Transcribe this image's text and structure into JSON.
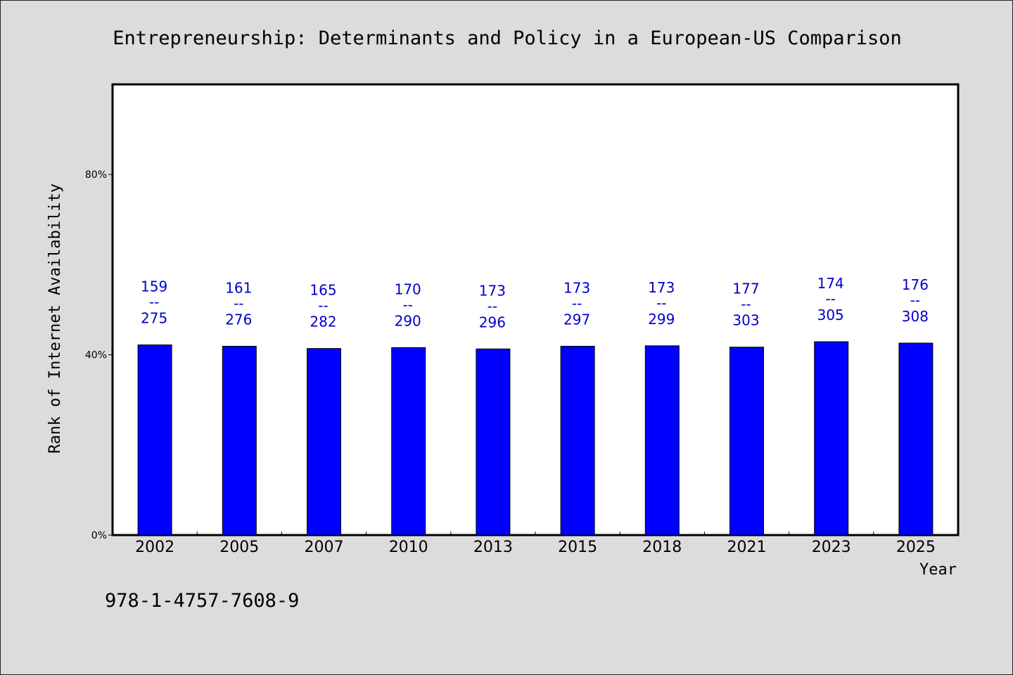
{
  "chart_data": {
    "type": "bar",
    "title": "Entrepreneurship: Determinants and Policy in a European-US Comparison",
    "xlabel": "Year",
    "ylabel": "Rank of Internet Availability",
    "categories": [
      "2002",
      "2005",
      "2007",
      "2010",
      "2013",
      "2015",
      "2018",
      "2021",
      "2023",
      "2025"
    ],
    "values": [
      0.422,
      0.419,
      0.414,
      0.416,
      0.413,
      0.419,
      0.42,
      0.417,
      0.429,
      0.426
    ],
    "labels_top": [
      "159",
      "161",
      "165",
      "170",
      "173",
      "173",
      "173",
      "177",
      "174",
      "176"
    ],
    "labels_bottom": [
      "275",
      "276",
      "282",
      "290",
      "296",
      "297",
      "299",
      "303",
      "305",
      "308"
    ],
    "label_separator": "--",
    "ylim": [
      0,
      1.0
    ],
    "yticks": [
      0,
      0.4,
      0.8
    ],
    "ytick_labels": [
      "0%",
      "40%",
      "80%"
    ],
    "grid": false,
    "bar_color": "#0000ff",
    "label_color": "#0000cc",
    "plot_background": "#ffffff",
    "page_background": "#dcdcdc"
  },
  "footer": {
    "isbn": "978-1-4757-7608-9"
  }
}
